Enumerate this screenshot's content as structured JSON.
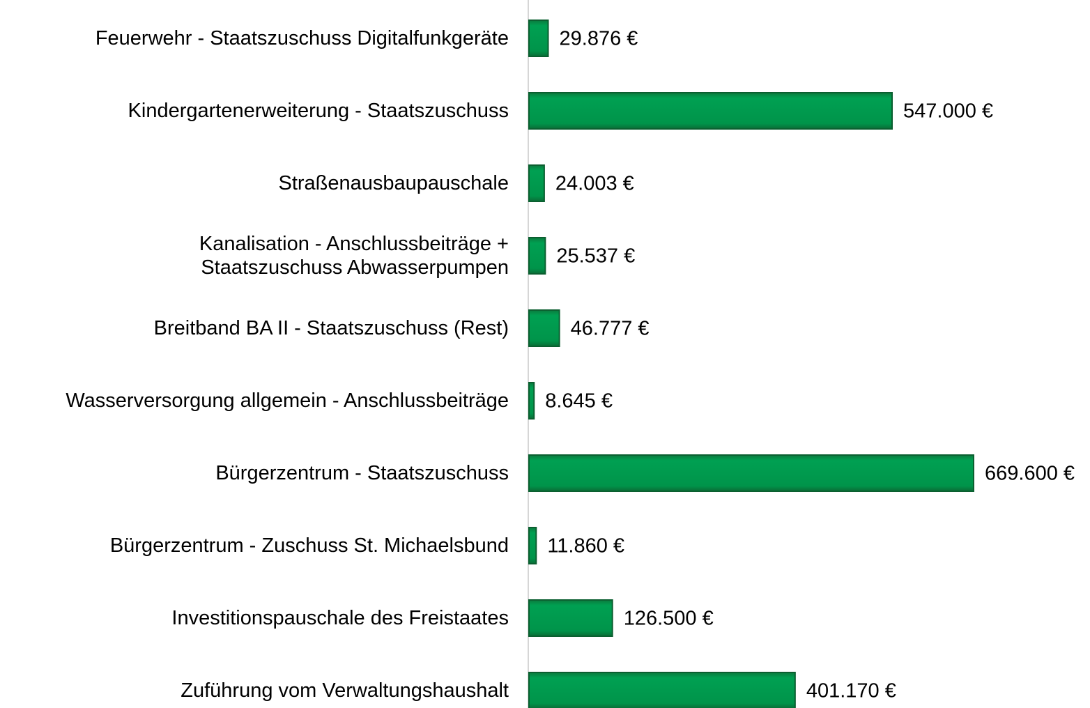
{
  "chart_data": {
    "type": "bar",
    "orientation": "horizontal",
    "categories": [
      "Feuerwehr - Staatszuschuss Digitalfunkgeräte",
      "Kindergartenerweiterung - Staatszuschuss",
      "Straßenausbaupauschale",
      "Kanalisation -  Anschlussbeiträge +\nStaatszuschuss  Abwasserpumpen",
      "Breitband BA II - Staatszuschuss (Rest)",
      "Wasserversorgung allgemein - Anschlussbeiträge",
      "Bürgerzentrum - Staatszuschuss",
      "Bürgerzentrum - Zuschuss St. Michaelsbund",
      "Investitionspauschale des Freistaates",
      "Zuführung vom Verwaltungshaushalt"
    ],
    "values": [
      29876,
      547000,
      24003,
      25537,
      46777,
      8645,
      669600,
      11860,
      126500,
      401170
    ],
    "value_labels": [
      "29.876 €",
      "547.000 €",
      "24.003 €",
      "25.537 €",
      "46.777 €",
      "8.645 €",
      "669.600 €",
      "11.860 €",
      "126.500 €",
      "401.170 €"
    ],
    "color": "#009a4e"
  }
}
